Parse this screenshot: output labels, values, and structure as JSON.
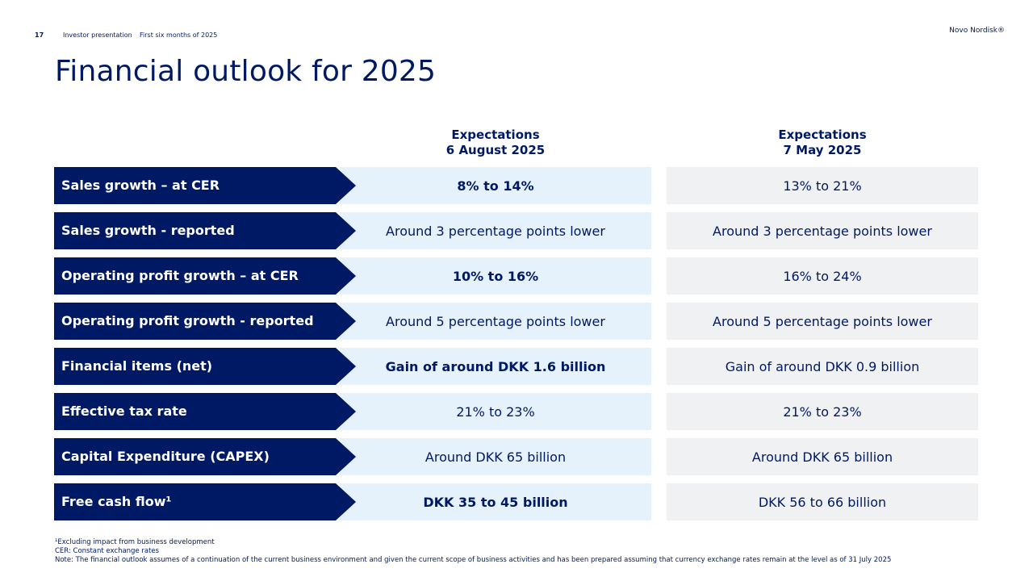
{
  "header": {
    "page_number": "17",
    "crumb_1": "Investor presentation",
    "crumb_2": "First six months of 2025",
    "brand": "Novo Nordisk®"
  },
  "title": "Financial outlook for 2025",
  "columns": {
    "current": {
      "line1": "Expectations",
      "line2": "6 August 2025"
    },
    "previous": {
      "line1": "Expectations",
      "line2": "7 May 2025"
    }
  },
  "rows": [
    {
      "label": "Sales growth – at CER",
      "current": "8% to 14%",
      "current_bold": true,
      "previous": "13% to 21%"
    },
    {
      "label": "Sales growth - reported",
      "current": "Around 3 percentage points lower",
      "current_bold": false,
      "previous": "Around 3 percentage points lower"
    },
    {
      "label": "Operating profit growth – at CER",
      "current": "10% to 16%",
      "current_bold": true,
      "previous": "16% to 24%"
    },
    {
      "label": "Operating profit growth - reported",
      "current": "Around 5 percentage points lower",
      "current_bold": false,
      "previous": "Around 5 percentage points lower"
    },
    {
      "label": "Financial items (net)",
      "current": "Gain of around DKK 1.6 billion",
      "current_bold": true,
      "previous": "Gain of around DKK 0.9 billion"
    },
    {
      "label": "Effective tax rate",
      "current": "21% to 23%",
      "current_bold": false,
      "previous": "21% to 23%"
    },
    {
      "label": "Capital Expenditure (CAPEX)",
      "current": "Around DKK 65 billion",
      "current_bold": false,
      "previous": "Around DKK 65 billion"
    },
    {
      "label": "Free cash flow¹",
      "current": "DKK 35 to 45 billion",
      "current_bold": true,
      "previous": "DKK 56 to 66 billion"
    }
  ],
  "footnotes": {
    "note1": "¹Excluding impact from business development",
    "note2": "CER: Constant exchange rates",
    "note3": "Note: The financial outlook assumes of a continuation of the current business environment and given the current scope of business activities and has been prepared assuming that currency exchange rates remain at the level as of 31 July 2025"
  },
  "colors": {
    "navy": "#001965",
    "current_bg": "#e5f1fb",
    "previous_bg": "#f0f1f2"
  }
}
